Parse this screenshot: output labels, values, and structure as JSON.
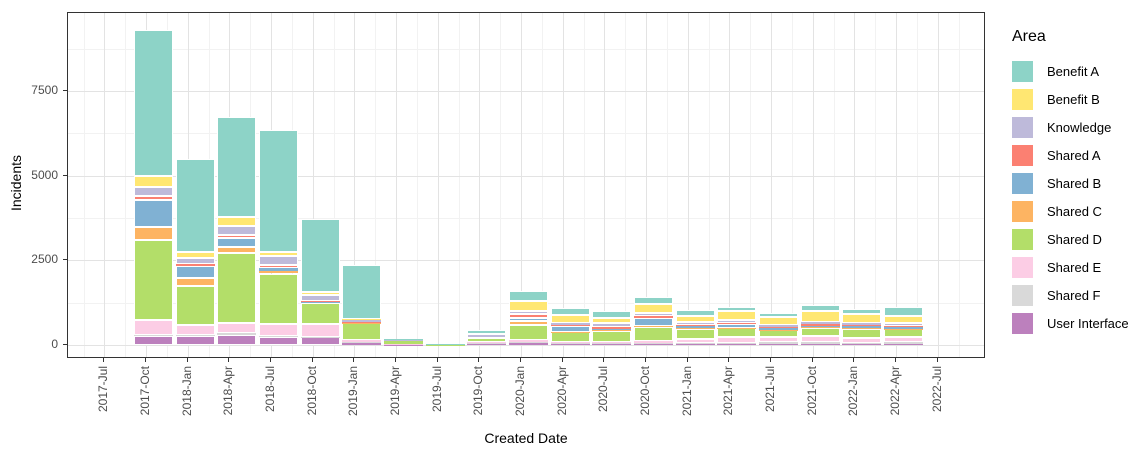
{
  "chart_data": {
    "type": "bar",
    "stacked": true,
    "title": "",
    "xlabel": "Created Date",
    "ylabel": "Incidents",
    "grid": "major-and-minor",
    "panel_border": true,
    "background": "#ffffff",
    "major_grid_color": "#e3e3e3",
    "minor_grid_color": "#f2f2f2",
    "legend": {
      "title": "Area",
      "position": "right"
    },
    "x_tick_labels": [
      "2017-Jul",
      "2017-Oct",
      "2018-Jan",
      "2018-Apr",
      "2018-Jul",
      "2018-Oct",
      "2019-Jan",
      "2019-Apr",
      "2019-Jul",
      "2019-Oct",
      "2020-Jan",
      "2020-Apr",
      "2020-Jul",
      "2020-Oct",
      "2021-Jan",
      "2021-Apr",
      "2021-Jul",
      "2021-Oct",
      "2022-Jan",
      "2022-Apr",
      "2022-Jul"
    ],
    "yticks": [
      0,
      2500,
      5000,
      7500
    ],
    "ytick_labels": [
      "0",
      "2500",
      "5000",
      "7500"
    ],
    "ylim": [
      0,
      9800
    ],
    "series": [
      {
        "name": "Benefit A",
        "color": "#8DD3C7",
        "values": [
          0,
          4300,
          2750,
          2950,
          3600,
          2150,
          1600,
          20,
          10,
          120,
          290,
          210,
          200,
          200,
          160,
          140,
          130,
          160,
          140,
          250,
          0
        ]
      },
      {
        "name": "Benefit B",
        "color": "#FFE772",
        "values": [
          0,
          330,
          170,
          260,
          110,
          90,
          30,
          0,
          0,
          0,
          290,
          220,
          175,
          270,
          200,
          250,
          220,
          320,
          250,
          200,
          0
        ]
      },
      {
        "name": "Knowledge",
        "color": "#BEBADA",
        "values": [
          0,
          270,
          180,
          260,
          290,
          180,
          60,
          60,
          5,
          110,
          100,
          70,
          95,
          95,
          90,
          100,
          70,
          80,
          80,
          90,
          0
        ]
      },
      {
        "name": "Shared A",
        "color": "#FB8072",
        "values": [
          0,
          110,
          70,
          90,
          90,
          20,
          10,
          0,
          0,
          0,
          100,
          20,
          80,
          40,
          30,
          20,
          40,
          40,
          30,
          30,
          0
        ]
      },
      {
        "name": "Shared B",
        "color": "#80B1D3",
        "values": [
          0,
          800,
          350,
          270,
          80,
          20,
          20,
          0,
          0,
          0,
          110,
          190,
          20,
          250,
          60,
          110,
          40,
          40,
          60,
          60,
          0
        ]
      },
      {
        "name": "Shared C",
        "color": "#FDB462",
        "values": [
          0,
          400,
          250,
          180,
          70,
          20,
          10,
          0,
          0,
          0,
          100,
          10,
          20,
          30,
          20,
          20,
          20,
          20,
          20,
          20,
          0
        ]
      },
      {
        "name": "Shared D",
        "color": "#B3DE69",
        "values": [
          0,
          2350,
          1150,
          2070,
          1480,
          620,
          500,
          80,
          10,
          110,
          450,
          290,
          330,
          400,
          280,
          250,
          200,
          250,
          260,
          220,
          0
        ]
      },
      {
        "name": "Shared E",
        "color": "#FCCDE5",
        "values": [
          0,
          440,
          290,
          300,
          370,
          370,
          60,
          10,
          0,
          40,
          60,
          30,
          40,
          60,
          120,
          170,
          150,
          180,
          140,
          160,
          0
        ]
      },
      {
        "name": "Shared F",
        "color": "#D9D9D9",
        "values": [
          0,
          40,
          30,
          40,
          30,
          20,
          20,
          10,
          0,
          40,
          30,
          20,
          20,
          30,
          30,
          30,
          40,
          40,
          30,
          40,
          0
        ]
      },
      {
        "name": "User Interface",
        "color": "#BC80BD",
        "values": [
          0,
          260,
          260,
          300,
          230,
          230,
          60,
          10,
          0,
          20,
          60,
          30,
          30,
          40,
          40,
          40,
          40,
          40,
          40,
          40,
          0
        ]
      }
    ]
  }
}
